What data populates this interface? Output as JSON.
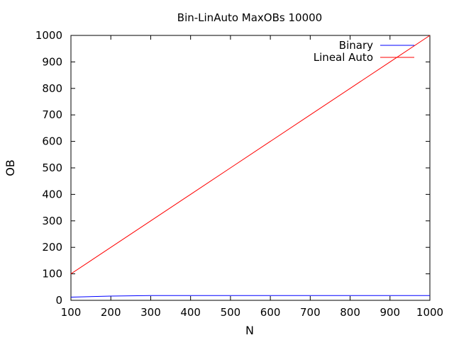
{
  "chart_data": {
    "type": "line",
    "title": "Bin-LinAuto MaxOBs 10000",
    "xlabel": "N",
    "ylabel": "OB",
    "xlim": [
      100,
      1000
    ],
    "ylim": [
      0,
      1000
    ],
    "x_ticks": [
      100,
      200,
      300,
      400,
      500,
      600,
      700,
      800,
      900,
      1000
    ],
    "y_ticks": [
      0,
      100,
      200,
      300,
      400,
      500,
      600,
      700,
      800,
      900,
      1000
    ],
    "grid": false,
    "legend_position": "top-right",
    "x": [
      100,
      200,
      300,
      400,
      500,
      600,
      700,
      800,
      900,
      1000
    ],
    "series": [
      {
        "name": "Binary",
        "color": "#0000ff",
        "values": [
          12,
          16,
          18,
          18,
          18,
          18,
          18,
          18,
          18,
          18
        ]
      },
      {
        "name": "Lineal Auto",
        "color": "#ff0000",
        "values": [
          100,
          200,
          300,
          400,
          500,
          600,
          700,
          800,
          900,
          1000
        ]
      }
    ]
  }
}
